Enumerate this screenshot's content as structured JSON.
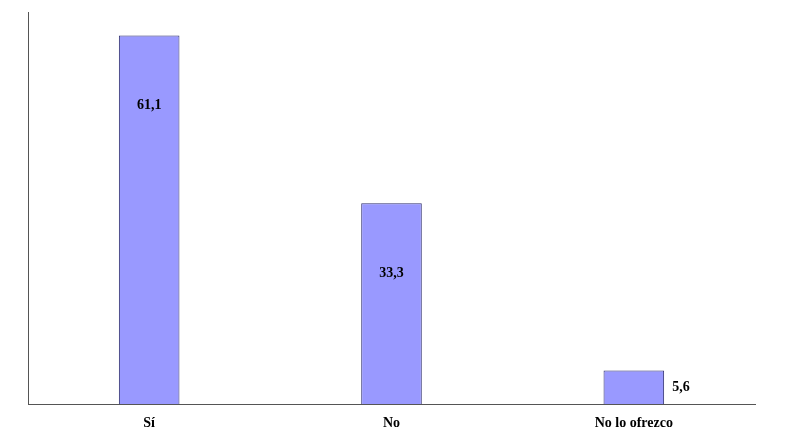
{
  "chart_data": {
    "type": "bar",
    "categories": [
      "Sí",
      "No",
      "No lo ofrezco"
    ],
    "values": [
      61.1,
      33.3,
      5.6
    ],
    "value_labels": [
      "61,1",
      "33,3",
      "5,6"
    ],
    "color": "#9999ff",
    "ylim": [
      0,
      65
    ],
    "grid": false,
    "data_labels": true,
    "tick_labels": "x"
  }
}
